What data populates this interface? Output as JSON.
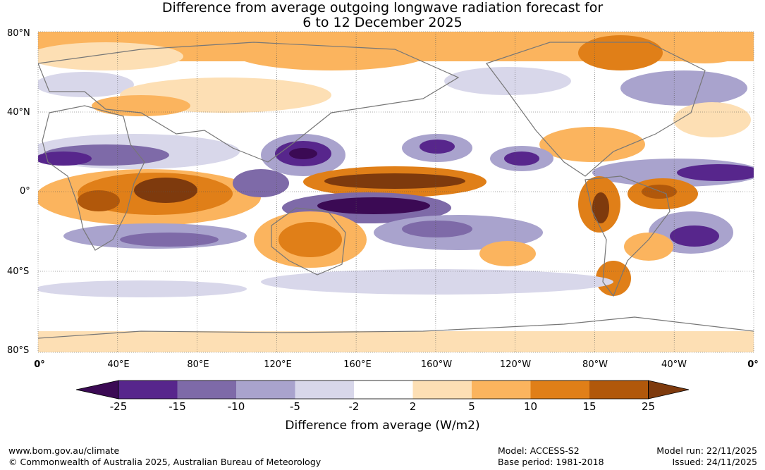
{
  "title": {
    "line1": "Difference from average outgoing longwave radiation forecast for",
    "line2": "6 to 12 December 2025"
  },
  "axes": {
    "lat_labels": [
      "80°N",
      "40°N",
      "0°",
      "40°S",
      "80°S"
    ],
    "lon_labels": [
      "0°",
      "40°E",
      "80°E",
      "120°E",
      "160°E",
      "160°W",
      "120°W",
      "80°W",
      "40°W",
      "0°"
    ]
  },
  "colors": {
    "neg25": "#3b0a54",
    "neg15": "#57268c",
    "neg10": "#7e6aa8",
    "neg5": "#a9a3cd",
    "neg2": "#d8d7ea",
    "zero": "#ffffff",
    "pos2": "#fddfb4",
    "pos5": "#fbb45e",
    "pos10": "#e07f18",
    "pos15": "#b1580b",
    "pos25": "#7e3a0d",
    "coast": "#777777"
  },
  "colorbar": {
    "ticks": [
      "-25",
      "-15",
      "-10",
      "-5",
      "-2",
      "2",
      "5",
      "10",
      "15",
      "25"
    ],
    "label": "Difference from average (W/m2)"
  },
  "footer": {
    "url": "www.bom.gov.au/climate",
    "copyright": "© Commonwealth of Australia 2025, Australian Bureau of Meteorology",
    "model": "Model: ACCESS-S2",
    "base_period": "Base period: 1981-2018",
    "model_run": "Model run: 22/11/2025",
    "issued": "Issued: 24/11/2025"
  }
}
